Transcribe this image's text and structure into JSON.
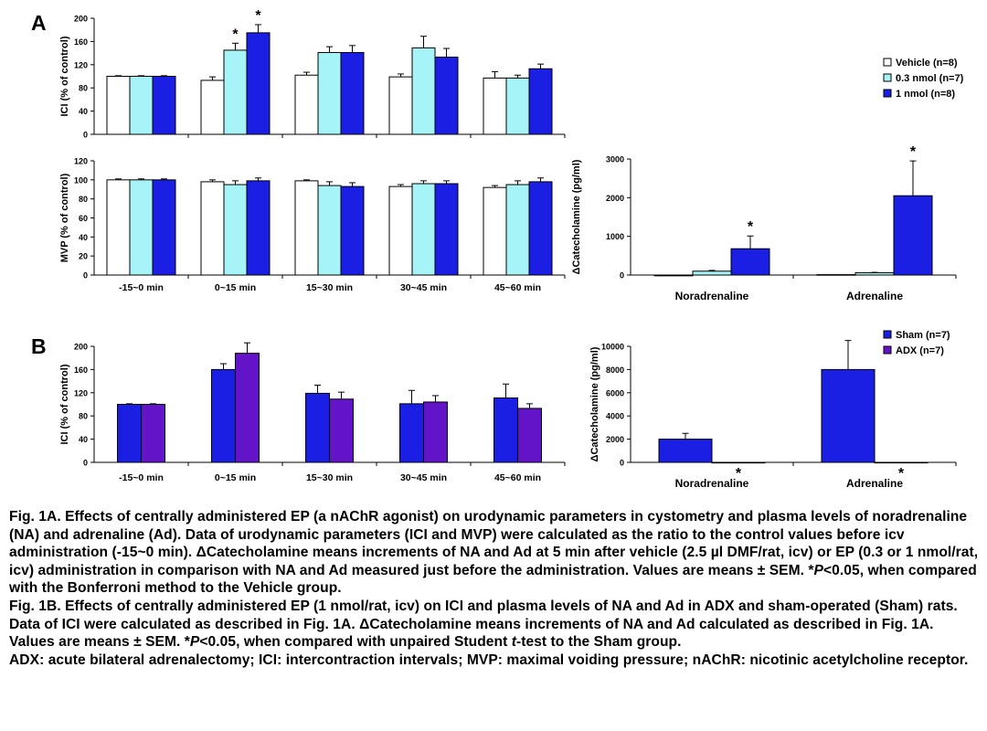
{
  "panel_labels": {
    "a": "A",
    "b": "B"
  },
  "colors": {
    "vehicle": "#ffffff",
    "nmol03": "#a6f4f8",
    "nmol1": "#1b1ee3",
    "sham": "#1b1ee3",
    "adx": "#6414c8"
  },
  "chart_data": [
    {
      "id": "a_ici",
      "type": "bar",
      "panel": "A",
      "ylabel": "ICI (% of control)",
      "ylim": [
        0,
        200
      ],
      "yticks": [
        0,
        40,
        80,
        120,
        160,
        200
      ],
      "categories": [
        "-15~0 min",
        "0~15 min",
        "15~30 min",
        "30~45 min",
        "45~60 min"
      ],
      "series": [
        {
          "name": "Vehicle (n=8)",
          "color": "#ffffff",
          "values": [
            100,
            93,
            102,
            99,
            97
          ],
          "errors": [
            1,
            6,
            5,
            5,
            11
          ]
        },
        {
          "name": "0.3 nmol (n=7)",
          "color": "#a6f4f8",
          "values": [
            100,
            145,
            141,
            149,
            97
          ],
          "errors": [
            1,
            12,
            10,
            20,
            5
          ]
        },
        {
          "name": "1 nmol (n=8)",
          "color": "#1b1ee3",
          "values": [
            100,
            175,
            141,
            133,
            113
          ],
          "errors": [
            1,
            14,
            12,
            15,
            8
          ]
        }
      ],
      "significance": [
        {
          "category": 1,
          "series": 1,
          "label": "*"
        },
        {
          "category": 1,
          "series": 2,
          "label": "*"
        }
      ],
      "legend": {
        "position": "right",
        "entries": [
          "Vehicle (n=8)",
          "0.3 nmol (n=7)",
          "1 nmol (n=8)"
        ]
      }
    },
    {
      "id": "a_mvp",
      "type": "bar",
      "panel": "A",
      "ylabel": "MVP (% of control)",
      "ylim": [
        0,
        120
      ],
      "yticks": [
        0,
        20,
        40,
        60,
        80,
        100,
        120
      ],
      "categories": [
        "-15~0 min",
        "0~15 min",
        "15~30 min",
        "30~45 min",
        "45~60 min"
      ],
      "series": [
        {
          "name": "Vehicle (n=8)",
          "color": "#ffffff",
          "values": [
            100,
            98,
            99,
            93,
            92
          ],
          "errors": [
            1,
            2,
            1,
            2,
            2
          ]
        },
        {
          "name": "0.3 nmol (n=7)",
          "color": "#a6f4f8",
          "values": [
            100,
            95,
            94,
            96,
            95
          ],
          "errors": [
            1,
            4,
            4,
            3,
            4
          ]
        },
        {
          "name": "1 nmol (n=8)",
          "color": "#1b1ee3",
          "values": [
            100,
            99,
            93,
            96,
            98
          ],
          "errors": [
            1,
            3,
            4,
            3,
            4
          ]
        }
      ]
    },
    {
      "id": "a_cat",
      "type": "bar",
      "panel": "A",
      "ylabel": "ΔCatecholamine (pg/ml)",
      "ylim": [
        0,
        3000
      ],
      "yticks": [
        0,
        1000,
        2000,
        3000
      ],
      "categories": [
        "Noradrenaline",
        "Adrenaline"
      ],
      "series": [
        {
          "name": "Vehicle (n=8)",
          "color": "#ffffff",
          "values": [
            -20,
            10
          ],
          "errors": [
            0,
            0
          ]
        },
        {
          "name": "0.3 nmol (n=7)",
          "color": "#a6f4f8",
          "values": [
            100,
            60
          ],
          "errors": [
            20,
            10
          ]
        },
        {
          "name": "1 nmol (n=8)",
          "color": "#1b1ee3",
          "values": [
            680,
            2050
          ],
          "errors": [
            330,
            900
          ]
        }
      ],
      "significance": [
        {
          "category": 0,
          "series": 2,
          "label": "*"
        },
        {
          "category": 1,
          "series": 2,
          "label": "*"
        }
      ]
    },
    {
      "id": "b_ici",
      "type": "bar",
      "panel": "B",
      "ylabel": "ICI (% of control)",
      "ylim": [
        0,
        200
      ],
      "yticks": [
        0,
        40,
        80,
        120,
        160,
        200
      ],
      "categories": [
        "-15~0 min",
        "0~15 min",
        "15~30 min",
        "30~45 min",
        "45~60 min"
      ],
      "series": [
        {
          "name": "Sham (n=7)",
          "color": "#1b1ee3",
          "values": [
            100,
            160,
            119,
            101,
            111
          ],
          "errors": [
            1,
            10,
            14,
            23,
            24
          ]
        },
        {
          "name": "ADX (n=7)",
          "color": "#6414c8",
          "values": [
            100,
            188,
            109,
            104,
            93
          ],
          "errors": [
            1,
            18,
            12,
            11,
            8
          ]
        }
      ]
    },
    {
      "id": "b_cat",
      "type": "bar",
      "panel": "B",
      "ylabel": "ΔCatecholamine (pg/ml)",
      "ylim": [
        0,
        10000
      ],
      "yticks": [
        0,
        2000,
        4000,
        6000,
        8000,
        10000
      ],
      "categories": [
        "Noradrenaline",
        "Adrenaline"
      ],
      "series": [
        {
          "name": "Sham (n=7)",
          "color": "#1b1ee3",
          "values": [
            2000,
            8000
          ],
          "errors": [
            500,
            2500
          ]
        },
        {
          "name": "ADX (n=7)",
          "color": "#6414c8",
          "values": [
            -50,
            0
          ],
          "errors": [
            0,
            0
          ]
        }
      ],
      "significance": [
        {
          "category": 0,
          "series": 1,
          "label": "*"
        },
        {
          "category": 1,
          "series": 1,
          "label": "*"
        }
      ],
      "legend": {
        "position": "top-right",
        "entries": [
          "Sham (n=7)",
          "ADX (n=7)"
        ]
      }
    }
  ],
  "caption": {
    "p1": [
      "Fig. 1A. Effects of centrally administered EP (a nAChR agonist) on urodynamic parameters in cystometry and plasma levels of noradrenaline (NA) and adrenaline (Ad).  Data of urodynamic parameters (ICI and MVP) were calculated as the ratio to the control values before icv administration (-15~0 min).  ΔCatecholamine means increments of NA and Ad at 5 min after vehicle (2.5 µl DMF/rat, icv) or EP (0.3 or 1 nmol/rat, icv) administration in comparison with NA and Ad measured just before the administration.  Values are means ± SEM.  *",
      "P",
      "<0.05, when compared with the Bonferroni method to the Vehicle group."
    ],
    "p2": [
      "Fig. 1B. Effects of centrally administered EP (1 nmol/rat, icv) on ICI and plasma levels of NA and Ad in ADX and sham-operated (Sham) rats.  Data of ICI were calculated as described in Fig. 1A.  ΔCatecholamine means increments of NA and Ad calculated as described in Fig. 1A.  Values are means ± SEM.  *",
      "P",
      "<0.05, when compared with unpaired Student ",
      "t",
      "-test to the Sham group."
    ],
    "p3": "ADX: acute bilateral adrenalectomy; ICI: intercontraction intervals; MVP: maximal voiding pressure; nAChR: nicotinic acetylcholine receptor."
  }
}
